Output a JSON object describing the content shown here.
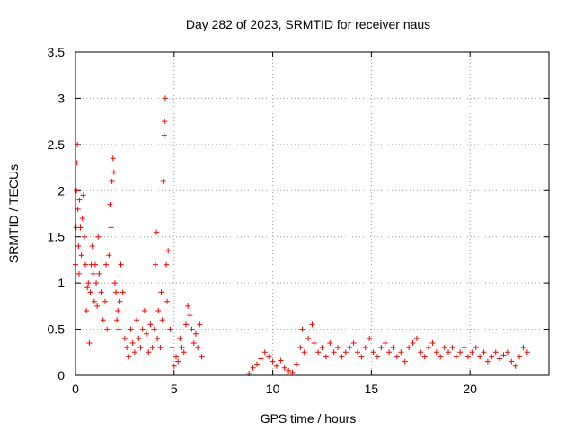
{
  "chart_data": {
    "type": "scatter",
    "title": "Day 282 of 2023, SRMTID for receiver naus",
    "xlabel": "GPS time / hours",
    "ylabel": "SRMTID / TECUs",
    "xlim": [
      0,
      24
    ],
    "ylim": [
      0,
      3.5
    ],
    "xticks": [
      0,
      5,
      10,
      15,
      20
    ],
    "xtick_labels": [
      "0",
      "5",
      "10",
      "15",
      "20"
    ],
    "yticks": [
      0,
      0.5,
      1,
      1.5,
      2,
      2.5,
      3,
      3.5
    ],
    "ytick_labels": [
      "0",
      "0.5",
      "1",
      "1.5",
      "2",
      "2.5",
      "3",
      "3.5"
    ],
    "grid": true,
    "marker": "+",
    "series": [
      {
        "name": "SRMTID",
        "color": "#ff0000",
        "points": [
          [
            0.0,
            1.2
          ],
          [
            0.03,
            1.6
          ],
          [
            0.05,
            2.0
          ],
          [
            0.08,
            2.3
          ],
          [
            0.1,
            2.5
          ],
          [
            0.12,
            1.8
          ],
          [
            0.15,
            1.4
          ],
          [
            0.18,
            1.1
          ],
          [
            0.2,
            1.9
          ],
          [
            0.25,
            1.6
          ],
          [
            0.3,
            1.3
          ],
          [
            0.35,
            1.7
          ],
          [
            0.4,
            1.95
          ],
          [
            0.45,
            1.5
          ],
          [
            0.5,
            1.2
          ],
          [
            0.55,
            0.7
          ],
          [
            0.6,
            0.95
          ],
          [
            0.65,
            1.0
          ],
          [
            0.7,
            0.35
          ],
          [
            0.75,
            0.9
          ],
          [
            0.8,
            1.2
          ],
          [
            0.85,
            1.4
          ],
          [
            0.9,
            1.1
          ],
          [
            0.95,
            0.8
          ],
          [
            1.0,
            1.2
          ],
          [
            1.05,
            1.0
          ],
          [
            1.1,
            0.75
          ],
          [
            1.15,
            1.5
          ],
          [
            1.2,
            1.1
          ],
          [
            1.3,
            0.9
          ],
          [
            1.4,
            0.6
          ],
          [
            1.5,
            0.8
          ],
          [
            1.55,
            1.2
          ],
          [
            1.6,
            0.5
          ],
          [
            1.7,
            1.3
          ],
          [
            1.75,
            1.85
          ],
          [
            1.8,
            1.6
          ],
          [
            1.85,
            2.1
          ],
          [
            1.9,
            2.35
          ],
          [
            1.95,
            2.2
          ],
          [
            2.0,
            1.0
          ],
          [
            2.05,
            0.9
          ],
          [
            2.1,
            0.6
          ],
          [
            2.15,
            0.7
          ],
          [
            2.2,
            0.5
          ],
          [
            2.25,
            0.8
          ],
          [
            2.3,
            1.2
          ],
          [
            2.4,
            0.9
          ],
          [
            2.5,
            0.4
          ],
          [
            2.6,
            0.3
          ],
          [
            2.7,
            0.2
          ],
          [
            2.8,
            0.5
          ],
          [
            2.9,
            0.35
          ],
          [
            3.0,
            0.25
          ],
          [
            3.1,
            0.6
          ],
          [
            3.2,
            0.4
          ],
          [
            3.3,
            0.3
          ],
          [
            3.4,
            0.5
          ],
          [
            3.5,
            0.7
          ],
          [
            3.6,
            0.45
          ],
          [
            3.7,
            0.25
          ],
          [
            3.8,
            0.55
          ],
          [
            3.9,
            0.3
          ],
          [
            4.0,
            0.5
          ],
          [
            4.05,
            1.2
          ],
          [
            4.1,
            1.55
          ],
          [
            4.15,
            0.4
          ],
          [
            4.2,
            0.7
          ],
          [
            4.3,
            0.3
          ],
          [
            4.35,
            0.9
          ],
          [
            4.4,
            0.6
          ],
          [
            4.45,
            2.1
          ],
          [
            4.5,
            2.6
          ],
          [
            4.52,
            2.75
          ],
          [
            4.55,
            3.0
          ],
          [
            4.6,
            1.2
          ],
          [
            4.65,
            0.8
          ],
          [
            4.7,
            1.35
          ],
          [
            4.8,
            0.5
          ],
          [
            4.9,
            0.3
          ],
          [
            5.0,
            0.1
          ],
          [
            5.1,
            0.2
          ],
          [
            5.2,
            0.15
          ],
          [
            5.3,
            0.4
          ],
          [
            5.4,
            0.3
          ],
          [
            5.5,
            0.25
          ],
          [
            5.6,
            0.55
          ],
          [
            5.7,
            0.75
          ],
          [
            5.8,
            0.65
          ],
          [
            5.9,
            0.5
          ],
          [
            6.0,
            0.35
          ],
          [
            6.1,
            0.45
          ],
          [
            6.2,
            0.3
          ],
          [
            6.3,
            0.55
          ],
          [
            6.4,
            0.2
          ],
          [
            8.8,
            0.02
          ],
          [
            9.0,
            0.08
          ],
          [
            9.2,
            0.12
          ],
          [
            9.4,
            0.18
          ],
          [
            9.6,
            0.25
          ],
          [
            9.8,
            0.2
          ],
          [
            10.0,
            0.15
          ],
          [
            10.2,
            0.1
          ],
          [
            10.4,
            0.16
          ],
          [
            10.6,
            0.08
          ],
          [
            10.8,
            0.05
          ],
          [
            11.0,
            0.03
          ],
          [
            11.2,
            0.12
          ],
          [
            11.4,
            0.3
          ],
          [
            11.5,
            0.5
          ],
          [
            11.6,
            0.25
          ],
          [
            11.8,
            0.4
          ],
          [
            12.0,
            0.55
          ],
          [
            12.1,
            0.35
          ],
          [
            12.3,
            0.25
          ],
          [
            12.5,
            0.3
          ],
          [
            12.7,
            0.2
          ],
          [
            12.9,
            0.35
          ],
          [
            13.1,
            0.25
          ],
          [
            13.3,
            0.3
          ],
          [
            13.5,
            0.2
          ],
          [
            13.7,
            0.25
          ],
          [
            13.9,
            0.3
          ],
          [
            14.1,
            0.35
          ],
          [
            14.3,
            0.25
          ],
          [
            14.5,
            0.2
          ],
          [
            14.7,
            0.3
          ],
          [
            14.9,
            0.4
          ],
          [
            15.1,
            0.25
          ],
          [
            15.3,
            0.2
          ],
          [
            15.5,
            0.3
          ],
          [
            15.7,
            0.35
          ],
          [
            15.9,
            0.25
          ],
          [
            16.1,
            0.3
          ],
          [
            16.3,
            0.2
          ],
          [
            16.5,
            0.25
          ],
          [
            16.7,
            0.15
          ],
          [
            16.9,
            0.3
          ],
          [
            17.1,
            0.35
          ],
          [
            17.3,
            0.4
          ],
          [
            17.5,
            0.25
          ],
          [
            17.7,
            0.2
          ],
          [
            17.9,
            0.3
          ],
          [
            18.1,
            0.35
          ],
          [
            18.3,
            0.25
          ],
          [
            18.5,
            0.2
          ],
          [
            18.7,
            0.3
          ],
          [
            18.9,
            0.25
          ],
          [
            19.1,
            0.3
          ],
          [
            19.3,
            0.2
          ],
          [
            19.5,
            0.25
          ],
          [
            19.7,
            0.3
          ],
          [
            19.9,
            0.2
          ],
          [
            20.1,
            0.25
          ],
          [
            20.3,
            0.3
          ],
          [
            20.5,
            0.2
          ],
          [
            20.7,
            0.25
          ],
          [
            20.9,
            0.15
          ],
          [
            21.1,
            0.2
          ],
          [
            21.3,
            0.25
          ],
          [
            21.5,
            0.18
          ],
          [
            21.7,
            0.22
          ],
          [
            21.9,
            0.25
          ],
          [
            22.1,
            0.15
          ],
          [
            22.3,
            0.1
          ],
          [
            22.5,
            0.2
          ],
          [
            22.7,
            0.3
          ],
          [
            22.9,
            0.25
          ]
        ]
      }
    ]
  }
}
